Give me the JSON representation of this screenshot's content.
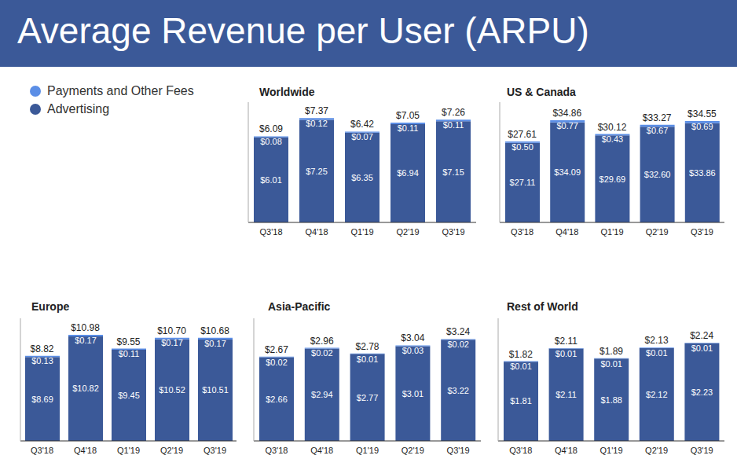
{
  "title": "Average Revenue per User (ARPU)",
  "chart_data": [
    {
      "type": "bar",
      "title": "Worldwide",
      "categories": [
        "Q3'18",
        "Q4'18",
        "Q1'19",
        "Q2'19",
        "Q3'19"
      ],
      "series": [
        {
          "name": "Advertising",
          "color": "#3b5998",
          "values": [
            6.01,
            7.25,
            6.35,
            6.94,
            7.15
          ],
          "value_labels": [
            "$6.01",
            "$7.25",
            "$6.35",
            "$6.94",
            "$7.15"
          ]
        },
        {
          "name": "Payments and Other Fees",
          "color": "#5b8ee6",
          "values": [
            0.08,
            0.12,
            0.07,
            0.11,
            0.11
          ],
          "value_labels": [
            "$0.08",
            "$0.12",
            "$0.07",
            "$0.11",
            "$0.11"
          ]
        }
      ],
      "totals": [
        6.09,
        7.37,
        6.42,
        7.05,
        7.26
      ],
      "total_labels": [
        "$6.09",
        "$7.37",
        "$6.42",
        "$7.05",
        "$7.26"
      ],
      "stacked": true,
      "data_labels": true,
      "tick_labels": "x",
      "grid": false,
      "legend": "left",
      "ylim": [
        0,
        8.5
      ]
    },
    {
      "type": "bar",
      "title": "US & Canada",
      "categories": [
        "Q3'18",
        "Q4'18",
        "Q1'19",
        "Q2'19",
        "Q3'19"
      ],
      "series": [
        {
          "name": "Advertising",
          "color": "#3b5998",
          "values": [
            27.11,
            34.09,
            29.69,
            32.6,
            33.86
          ],
          "value_labels": [
            "$27.11",
            "$34.09",
            "$29.69",
            "$32.60",
            "$33.86"
          ]
        },
        {
          "name": "Payments and Other Fees",
          "color": "#5b8ee6",
          "values": [
            0.5,
            0.77,
            0.43,
            0.67,
            0.69
          ],
          "value_labels": [
            "$0.50",
            "$0.77",
            "$0.43",
            "$0.67",
            "$0.69"
          ]
        }
      ],
      "totals": [
        27.61,
        34.86,
        30.12,
        33.27,
        34.55
      ],
      "total_labels": [
        "$27.61",
        "$34.86",
        "$30.12",
        "$33.27",
        "$34.55"
      ],
      "stacked": true,
      "data_labels": true,
      "tick_labels": "x",
      "grid": false,
      "ylim": [
        0,
        41
      ]
    },
    {
      "type": "bar",
      "title": "Europe",
      "categories": [
        "Q3'18",
        "Q4'18",
        "Q1'19",
        "Q2'19",
        "Q3'19"
      ],
      "series": [
        {
          "name": "Advertising",
          "color": "#3b5998",
          "values": [
            8.69,
            10.82,
            9.45,
            10.52,
            10.51
          ],
          "value_labels": [
            "$8.69",
            "$10.82",
            "$9.45",
            "$10.52",
            "$10.51"
          ]
        },
        {
          "name": "Payments and Other Fees",
          "color": "#5b8ee6",
          "values": [
            0.13,
            0.17,
            0.11,
            0.17,
            0.17
          ],
          "value_labels": [
            "$0.13",
            "$0.17",
            "$0.11",
            "$0.17",
            "$0.17"
          ]
        }
      ],
      "totals": [
        8.82,
        10.98,
        9.55,
        10.7,
        10.68
      ],
      "total_labels": [
        "$8.82",
        "$10.98",
        "$9.55",
        "$10.70",
        "$10.68"
      ],
      "stacked": true,
      "data_labels": true,
      "tick_labels": "x",
      "grid": false,
      "ylim": [
        0,
        12.7
      ]
    },
    {
      "type": "bar",
      "title": "Asia-Pacific",
      "categories": [
        "Q3'18",
        "Q4'18",
        "Q1'19",
        "Q2'19",
        "Q3'19"
      ],
      "series": [
        {
          "name": "Advertising",
          "color": "#3b5998",
          "values": [
            2.66,
            2.94,
            2.77,
            3.01,
            3.22
          ],
          "value_labels": [
            "$2.66",
            "$2.94",
            "$2.77",
            "$3.01",
            "$3.22"
          ]
        },
        {
          "name": "Payments and Other Fees",
          "color": "#5b8ee6",
          "values": [
            0.02,
            0.02,
            0.01,
            0.03,
            0.02
          ],
          "value_labels": [
            "$0.02",
            "$0.02",
            "$0.01",
            "$0.03",
            "$0.02"
          ]
        }
      ],
      "totals": [
        2.67,
        2.96,
        2.78,
        3.04,
        3.24
      ],
      "total_labels": [
        "$2.67",
        "$2.96",
        "$2.78",
        "$3.04",
        "$3.24"
      ],
      "stacked": true,
      "data_labels": true,
      "tick_labels": "x",
      "grid": false,
      "ylim": [
        0,
        3.9
      ]
    },
    {
      "type": "bar",
      "title": "Rest of World",
      "categories": [
        "Q3'18",
        "Q4'18",
        "Q1'19",
        "Q2'19",
        "Q3'19"
      ],
      "series": [
        {
          "name": "Advertising",
          "color": "#3b5998",
          "values": [
            1.81,
            2.11,
            1.88,
            2.12,
            2.23
          ],
          "value_labels": [
            "$1.81",
            "$2.11",
            "$1.88",
            "$2.12",
            "$2.23"
          ]
        },
        {
          "name": "Payments and Other Fees",
          "color": "#5b8ee6",
          "values": [
            0.01,
            0.01,
            0.01,
            0.01,
            0.01
          ],
          "value_labels": [
            "$0.01",
            "$0.01",
            "$0.01",
            "$0.01",
            "$0.01"
          ]
        }
      ],
      "totals": [
        1.82,
        2.11,
        1.89,
        2.13,
        2.24
      ],
      "total_labels": [
        "$1.82",
        "$2.11",
        "$1.89",
        "$2.13",
        "$2.24"
      ],
      "stacked": true,
      "data_labels": true,
      "tick_labels": "x",
      "grid": false,
      "ylim": [
        0,
        2.8
      ]
    }
  ]
}
